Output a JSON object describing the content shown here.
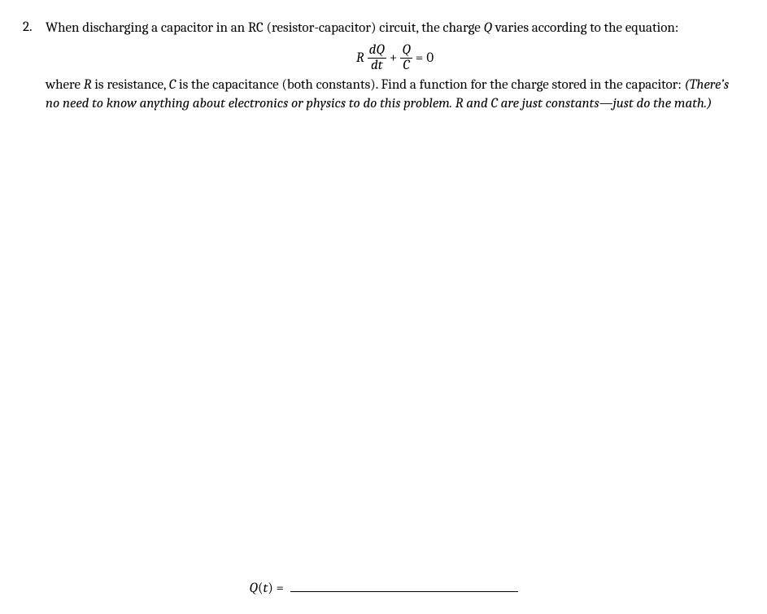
{
  "problem": {
    "number": "2.",
    "intro_a": "When discharging a capacitor in an RC (resistor-capacitor) circuit, the charge ",
    "intro_var": "Q",
    "intro_b": " varies according to the equation:",
    "equation": {
      "R": "R",
      "frac1_top": "dQ",
      "frac1_bot": "dt",
      "plus": "+",
      "frac2_top": "Q",
      "frac2_bot": "C",
      "eq": "=",
      "rhs": "0"
    },
    "follow_a": "where ",
    "follow_R": "R",
    "follow_b": " is resistance, ",
    "follow_C": "C",
    "follow_c": " is the capacitance (both constants). Find a function for the charge stored in the capacitor: ",
    "follow_ital": "(There’s no need to know anything about electronics or physics to do this problem. R and C are just constants—just do the math.)",
    "answer_label_Q": "Q",
    "answer_label_paren_t": "(t)",
    "answer_label_eq": " ="
  }
}
